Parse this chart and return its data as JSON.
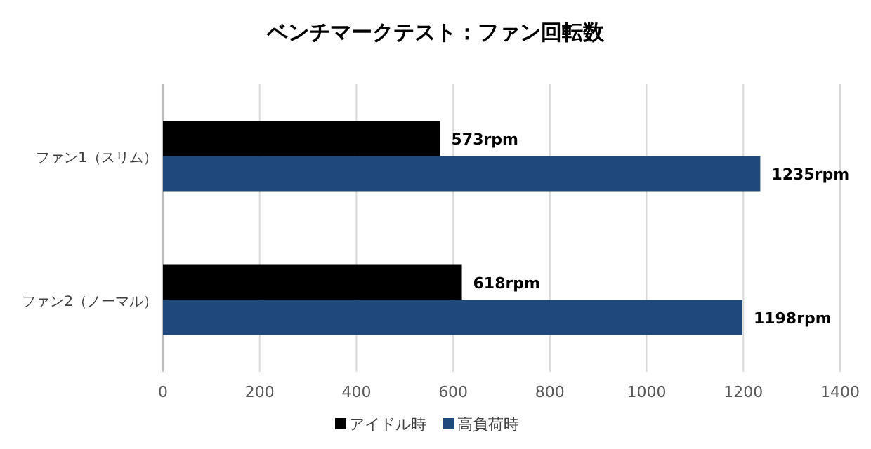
{
  "chart_data": {
    "type": "bar",
    "orientation": "horizontal",
    "title": "ベンチマークテスト：ファン回転数",
    "categories": [
      "ファン1（スリム）",
      "ファン2（ノーマル）"
    ],
    "series": [
      {
        "name": "アイドル時",
        "color": "#000000",
        "values": [
          573,
          618
        ],
        "value_labels": [
          "573rpm",
          "618rpm"
        ]
      },
      {
        "name": "高負荷時",
        "color": "#1f497d",
        "values": [
          1235,
          1198
        ],
        "value_labels": [
          "1235rpm",
          "1198rpm"
        ]
      }
    ],
    "xlim": [
      0,
      1400
    ],
    "xticks": [
      0,
      200,
      400,
      600,
      800,
      1000,
      1200,
      1400
    ],
    "grid": "x",
    "legend": "bottom"
  }
}
